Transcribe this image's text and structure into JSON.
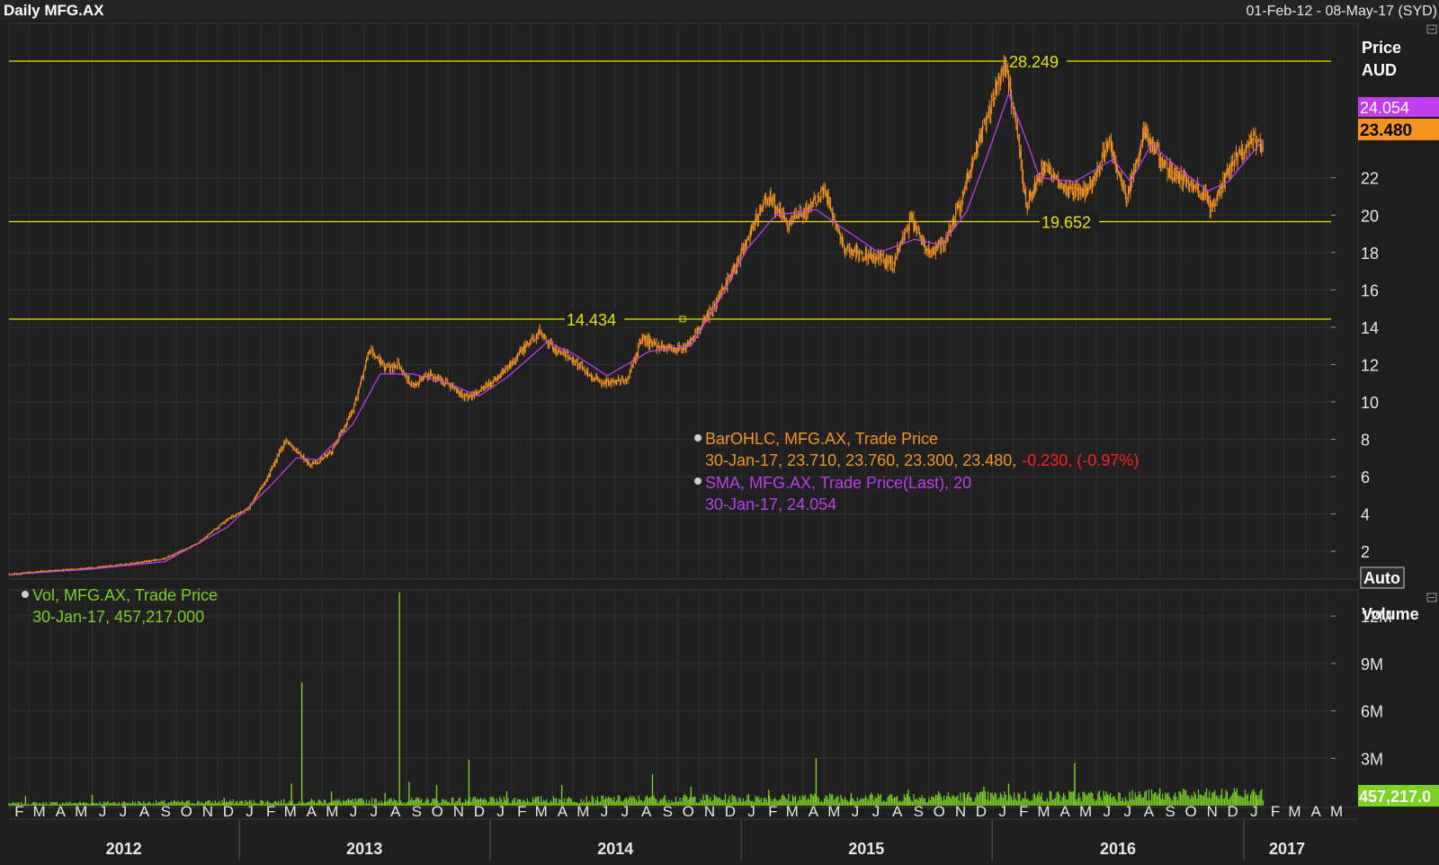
{
  "header": {
    "title": "Daily MFG.AX",
    "date_range": "01-Feb-12 - 08-May-17 (SYD)"
  },
  "colors": {
    "background": "#1e1e1e",
    "grid": "#2f2f2f",
    "price_bar": "#f7941d",
    "sma": "#c03cf0",
    "volume": "#7ad31f",
    "level_line": "#e6e600",
    "axis_text": "#e8e8e8",
    "negative": "#ff2020"
  },
  "price_panel": {
    "axis_title_1": "Price",
    "axis_title_2": "AUD",
    "auto_button": "Auto",
    "ticks": [
      "2",
      "4",
      "6",
      "8",
      "10",
      "12",
      "14",
      "16",
      "18",
      "20",
      "22"
    ],
    "sma_badge": "24.054",
    "last_badge": "23.480",
    "levels": [
      {
        "value": 28.249,
        "label": "28.249"
      },
      {
        "value": 19.652,
        "label": "19.652"
      },
      {
        "value": 14.434,
        "label": "14.434"
      }
    ],
    "legend": {
      "bar_name": "BarOHLC, MFG.AX, Trade Price",
      "bar_values": "30-Jan-17, 23.710, 23.760, 23.300, 23.480,",
      "bar_change": "-0.230, (-0.97%)",
      "sma_name": "SMA, MFG.AX, Trade Price(Last),  20",
      "sma_values": "30-Jan-17, 24.054"
    }
  },
  "volume_panel": {
    "axis_title": "Volume",
    "ticks": [
      "3M",
      "6M",
      "9M",
      "12M"
    ],
    "last_badge": "457,217.0",
    "legend": {
      "name": "Vol, MFG.AX, Trade Price",
      "values": "30-Jan-17, 457,217.000"
    }
  },
  "x_axis": {
    "months": [
      "F",
      "M",
      "A",
      "M",
      "J",
      "J",
      "A",
      "S",
      "O",
      "N",
      "D",
      "J",
      "F",
      "M",
      "A",
      "M",
      "J",
      "J",
      "A",
      "S",
      "O",
      "N",
      "D",
      "J",
      "F",
      "M",
      "A",
      "M",
      "J",
      "J",
      "A",
      "S",
      "O",
      "N",
      "D",
      "J",
      "F",
      "M",
      "A",
      "M",
      "J",
      "J",
      "A",
      "S",
      "O",
      "N",
      "D",
      "J",
      "F",
      "M",
      "A",
      "M",
      "J",
      "J",
      "A",
      "S",
      "O",
      "N",
      "D",
      "J",
      "F",
      "M",
      "A",
      "M"
    ],
    "years": [
      "2012",
      "2013",
      "2014",
      "2015",
      "2016",
      "2017"
    ]
  },
  "chart_data": [
    {
      "type": "line",
      "title": "Daily MFG.AX",
      "ylabel": "Price AUD",
      "x_start": "2012-02-01",
      "x_end": "2017-05-08",
      "ylim": [
        0.8,
        29.5
      ],
      "price_series_name": "BarOHLC, MFG.AX, Trade Price",
      "sma_series_name": "SMA, MFG.AX, Trade Price(Last),  20",
      "price_path": [
        [
          "2012-02-01",
          0.75
        ],
        [
          "2012-04-01",
          0.95
        ],
        [
          "2012-06-01",
          1.1
        ],
        [
          "2012-08-01",
          1.35
        ],
        [
          "2012-09-15",
          1.6
        ],
        [
          "2012-11-01",
          2.4
        ],
        [
          "2012-12-15",
          3.7
        ],
        [
          "2013-01-15",
          4.3
        ],
        [
          "2013-02-15",
          6.2
        ],
        [
          "2013-03-10",
          8.0
        ],
        [
          "2013-04-15",
          6.6
        ],
        [
          "2013-05-15",
          7.3
        ],
        [
          "2013-06-15",
          9.5
        ],
        [
          "2013-07-10",
          12.8
        ],
        [
          "2013-08-01",
          11.8
        ],
        [
          "2013-08-20",
          12.0
        ],
        [
          "2013-09-10",
          10.8
        ],
        [
          "2013-10-01",
          11.5
        ],
        [
          "2013-11-01",
          11.0
        ],
        [
          "2013-12-01",
          10.2
        ],
        [
          "2014-01-10",
          11.2
        ],
        [
          "2014-02-10",
          12.5
        ],
        [
          "2014-03-15",
          13.8
        ],
        [
          "2014-04-05",
          12.8
        ],
        [
          "2014-05-01",
          12.3
        ],
        [
          "2014-06-10",
          11.0
        ],
        [
          "2014-07-20",
          11.2
        ],
        [
          "2014-08-10",
          13.4
        ],
        [
          "2014-09-01",
          13.0
        ],
        [
          "2014-10-10",
          12.8
        ],
        [
          "2014-11-15",
          14.6
        ],
        [
          "2014-12-20",
          17.0
        ],
        [
          "2015-01-20",
          19.6
        ],
        [
          "2015-02-10",
          21.0
        ],
        [
          "2015-03-10",
          19.5
        ],
        [
          "2015-04-05",
          20.2
        ],
        [
          "2015-05-01",
          21.5
        ],
        [
          "2015-06-01",
          18.2
        ],
        [
          "2015-07-10",
          17.8
        ],
        [
          "2015-08-10",
          17.4
        ],
        [
          "2015-09-05",
          19.8
        ],
        [
          "2015-10-01",
          18.0
        ],
        [
          "2015-10-25",
          18.6
        ],
        [
          "2015-11-20",
          21.0
        ],
        [
          "2015-12-20",
          24.8
        ],
        [
          "2016-01-20",
          28.2
        ],
        [
          "2016-02-05",
          25.0
        ],
        [
          "2016-02-20",
          20.5
        ],
        [
          "2016-03-15",
          22.5
        ],
        [
          "2016-04-20",
          21.5
        ],
        [
          "2016-05-20",
          21.3
        ],
        [
          "2016-06-20",
          23.9
        ],
        [
          "2016-07-15",
          20.8
        ],
        [
          "2016-08-10",
          24.5
        ],
        [
          "2016-09-10",
          22.5
        ],
        [
          "2016-10-10",
          21.8
        ],
        [
          "2016-11-05",
          21.1
        ],
        [
          "2016-11-15",
          20.2
        ],
        [
          "2016-12-10",
          22.5
        ],
        [
          "2017-01-15",
          24.1
        ],
        [
          "2017-01-30",
          23.48
        ]
      ],
      "sma_path": [
        [
          "2012-02-01",
          0.75
        ],
        [
          "2012-06-01",
          1.05
        ],
        [
          "2012-09-15",
          1.45
        ],
        [
          "2012-12-15",
          3.3
        ],
        [
          "2013-02-15",
          5.5
        ],
        [
          "2013-03-25",
          7.0
        ],
        [
          "2013-04-25",
          6.9
        ],
        [
          "2013-06-15",
          8.8
        ],
        [
          "2013-07-25",
          11.5
        ],
        [
          "2013-09-10",
          11.5
        ],
        [
          "2013-11-01",
          11.0
        ],
        [
          "2013-12-15",
          10.3
        ],
        [
          "2014-01-25",
          11.3
        ],
        [
          "2014-03-25",
          13.2
        ],
        [
          "2014-05-01",
          12.6
        ],
        [
          "2014-06-20",
          11.4
        ],
        [
          "2014-08-20",
          12.7
        ],
        [
          "2014-10-20",
          13.0
        ],
        [
          "2014-12-01",
          15.5
        ],
        [
          "2015-01-10",
          18.2
        ],
        [
          "2015-02-20",
          20.0
        ],
        [
          "2015-04-20",
          20.3
        ],
        [
          "2015-06-10",
          19.0
        ],
        [
          "2015-07-20",
          18.0
        ],
        [
          "2015-09-10",
          18.7
        ],
        [
          "2015-10-20",
          18.4
        ],
        [
          "2015-11-25",
          20.2
        ],
        [
          "2015-12-25",
          23.2
        ],
        [
          "2016-01-25",
          26.5
        ],
        [
          "2016-02-20",
          24.0
        ],
        [
          "2016-03-10",
          22.0
        ],
        [
          "2016-05-01",
          21.8
        ],
        [
          "2016-06-25",
          23.0
        ],
        [
          "2016-07-20",
          21.8
        ],
        [
          "2016-08-20",
          23.8
        ],
        [
          "2016-09-25",
          22.6
        ],
        [
          "2016-11-10",
          21.3
        ],
        [
          "2016-12-10",
          21.8
        ],
        [
          "2017-01-10",
          23.2
        ],
        [
          "2017-01-30",
          24.054
        ]
      ],
      "levels": [
        28.249,
        19.652,
        14.434
      ],
      "last_close": 23.48,
      "last_sma": 24.054,
      "grid": true
    },
    {
      "type": "bar",
      "title": "Vol, MFG.AX, Trade Price",
      "ylabel": "Volume",
      "ylim": [
        0,
        14000000
      ],
      "base_volume": 450000,
      "spikes": [
        [
          "2012-02-25",
          600000
        ],
        [
          "2012-06-01",
          700000
        ],
        [
          "2012-12-10",
          500000
        ],
        [
          "2013-03-18",
          1400000
        ],
        [
          "2013-04-02",
          7800000
        ],
        [
          "2013-05-15",
          900000
        ],
        [
          "2013-08-01",
          800000
        ],
        [
          "2013-08-22",
          13500000
        ],
        [
          "2013-09-05",
          1500000
        ],
        [
          "2013-10-15",
          1300000
        ],
        [
          "2013-12-01",
          2900000
        ],
        [
          "2014-01-25",
          900000
        ],
        [
          "2014-04-15",
          1300000
        ],
        [
          "2014-08-25",
          2000000
        ],
        [
          "2014-10-20",
          1200000
        ],
        [
          "2015-02-10",
          1000000
        ],
        [
          "2015-04-20",
          3000000
        ],
        [
          "2015-06-10",
          800000
        ],
        [
          "2015-09-01",
          1000000
        ],
        [
          "2015-10-15",
          900000
        ],
        [
          "2015-12-20",
          1200000
        ],
        [
          "2016-01-25",
          1400000
        ],
        [
          "2016-04-30",
          2700000
        ],
        [
          "2016-06-15",
          900000
        ],
        [
          "2016-09-01",
          1100000
        ],
        [
          "2016-12-20",
          900000
        ],
        [
          "2017-01-20",
          700000
        ]
      ],
      "last_value": 457217
    }
  ]
}
